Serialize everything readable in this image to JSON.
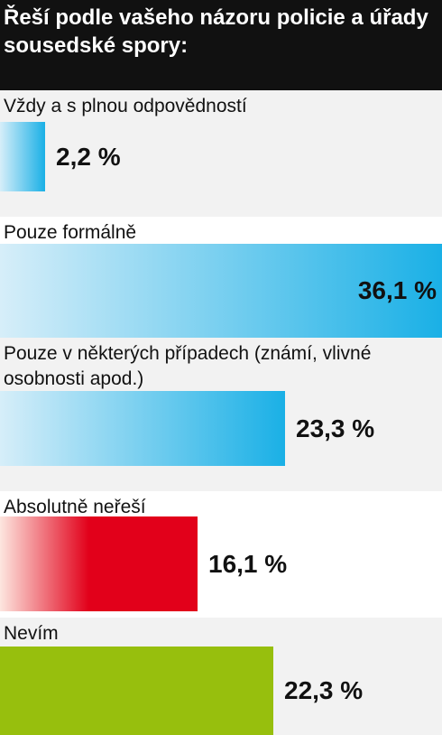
{
  "chart_data": {
    "type": "bar",
    "title": "Řeší podle vašeho názoru policie a úřady sousedské spory:",
    "categories": [
      "Vždy a s plnou odpovědností",
      "Pouze formálně",
      "Pouze v některých případech (známí, vlivné osobnosti apod.)",
      "Absolutně neřeší",
      "Nevím"
    ],
    "values": [
      2.2,
      36.1,
      23.3,
      16.1,
      22.3
    ],
    "value_labels": [
      "2,2 %",
      "36,1 %",
      "23,3 %",
      "16,1 %",
      "22,3 %"
    ],
    "unit": "%",
    "bar_styles": [
      "blue",
      "blue",
      "blue",
      "red",
      "green"
    ],
    "colors": {
      "blue_light": "#d6eef9",
      "blue": "#1ab0e6",
      "red_light": "#fde6df",
      "red": "#e2001a",
      "green": "#97bf0d",
      "header_bg": "#111111",
      "row_shade": "#f2f2f2"
    },
    "grid": false,
    "legend": "none"
  }
}
